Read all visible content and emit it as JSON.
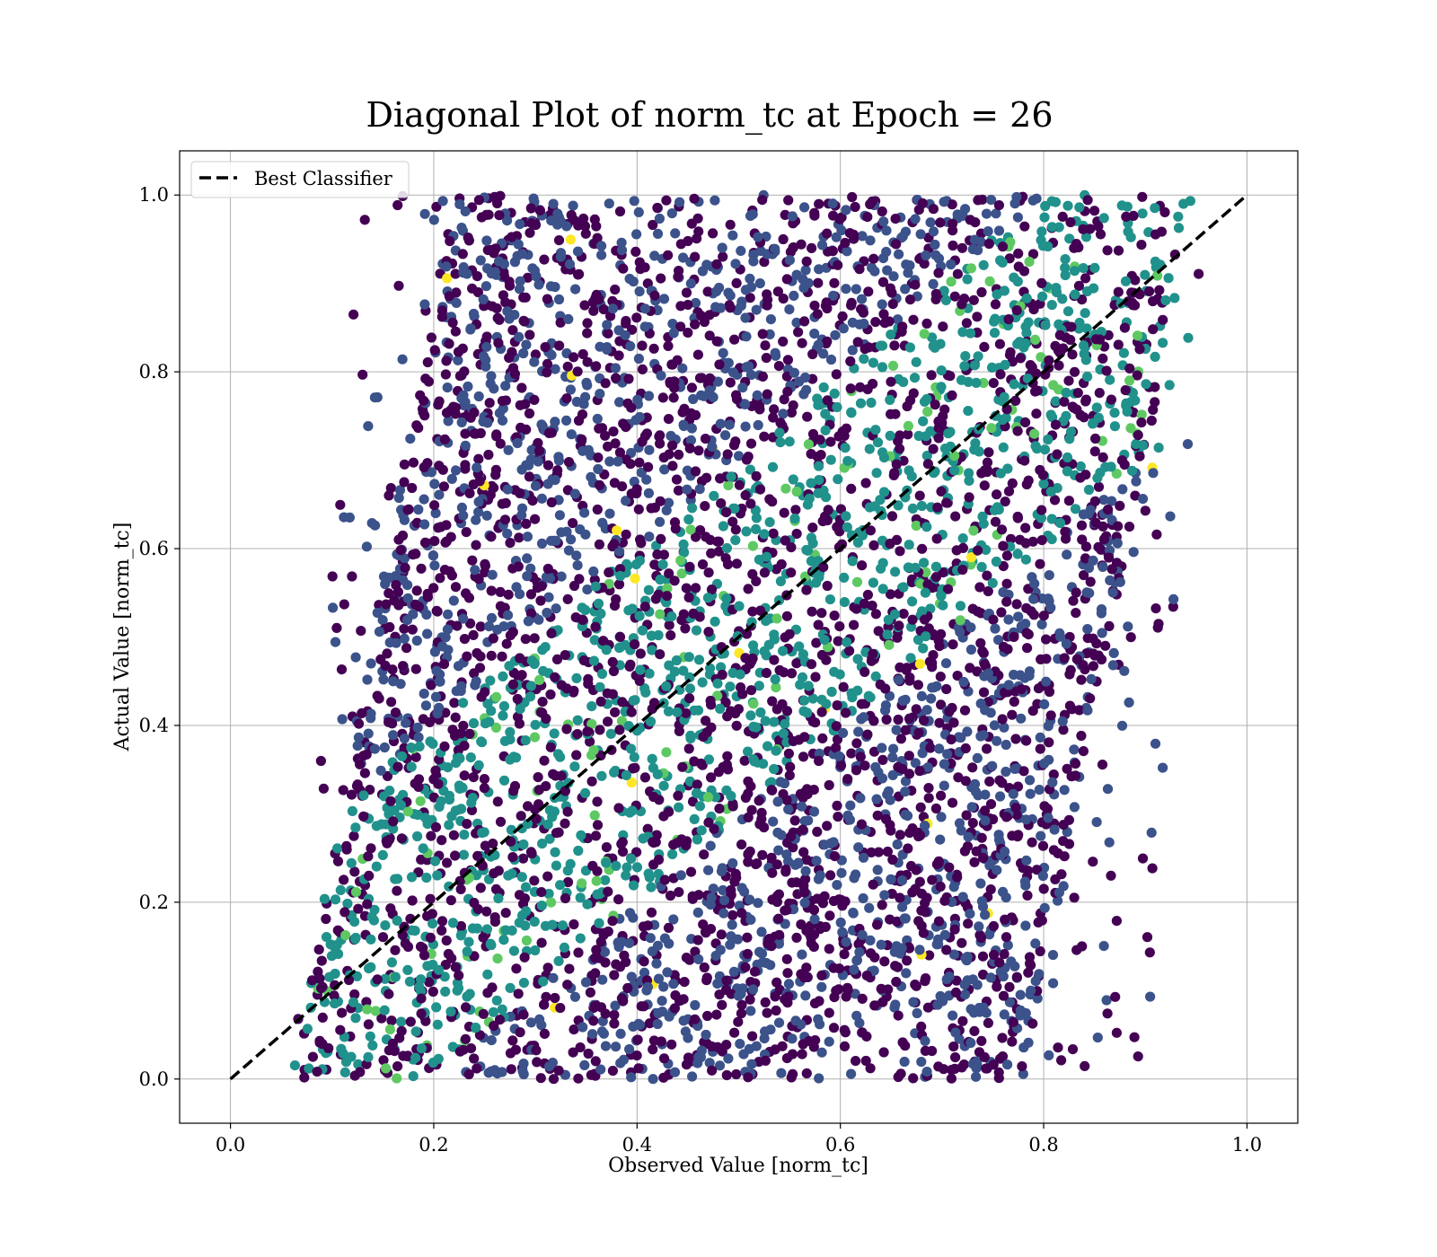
{
  "chart_data": {
    "type": "scatter",
    "title": "Diagonal Plot of norm_tc at Epoch = 26",
    "xlabel": "Observed Value [norm_tc]",
    "ylabel": "Actual Value [norm_tc]",
    "xlim": [
      -0.05,
      1.05
    ],
    "ylim": [
      -0.05,
      1.05
    ],
    "xticks": [
      "0.0",
      "0.2",
      "0.4",
      "0.6",
      "0.8",
      "1.0"
    ],
    "yticks": [
      "0.0",
      "0.2",
      "0.4",
      "0.6",
      "0.8",
      "1.0"
    ],
    "grid": true,
    "legend": {
      "placement": "top-left",
      "entries": [
        "Best Classifier"
      ]
    },
    "colormap": [
      "#440154",
      "#3b528b",
      "#21918c",
      "#5ec962",
      "#fde725"
    ],
    "series": [
      {
        "name": "Best Classifier",
        "style": "dashed",
        "color": "#000000",
        "x": [
          0.0,
          1.0
        ],
        "y": [
          0.0,
          1.0
        ]
      }
    ],
    "scatter_density": {
      "x_range": [
        0.06,
        0.96
      ],
      "y_range": [
        0.0,
        1.0
      ],
      "lower_band": {
        "at_y_0": [
          0.06,
          0.78
        ],
        "at_y_1": [
          0.22,
          0.95
        ]
      },
      "outer_band": {
        "at_y_0": [
          0.06,
          0.9
        ],
        "at_y_1": [
          0.13,
          0.96
        ]
      }
    }
  }
}
